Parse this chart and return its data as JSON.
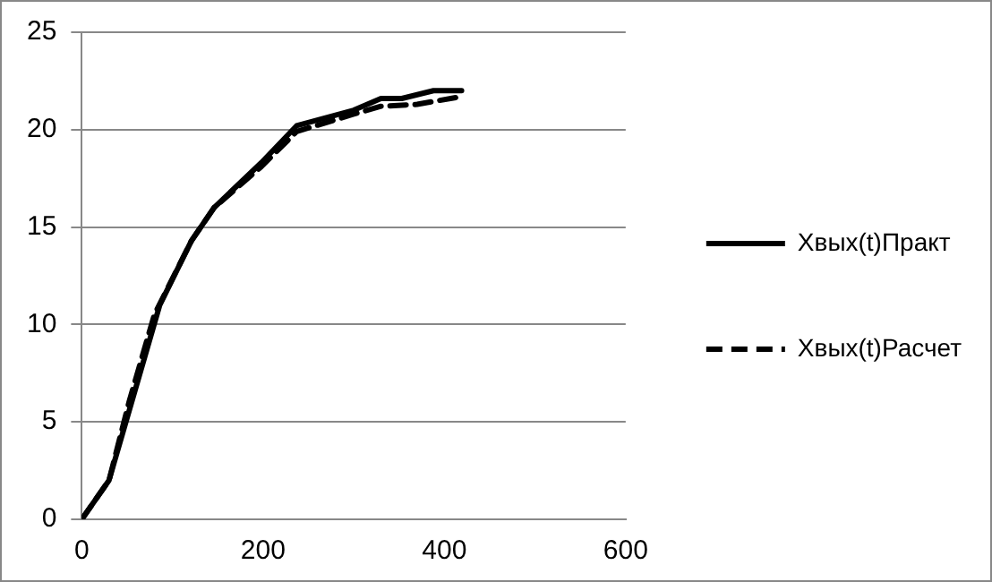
{
  "chart_data": {
    "type": "line",
    "xlim": [
      0,
      600
    ],
    "xticks": [
      0,
      200,
      400,
      600
    ],
    "ylim": [
      0,
      25
    ],
    "yticks": [
      0,
      5,
      10,
      15,
      20,
      25
    ],
    "grid": "y",
    "legend": "right",
    "marker": "none",
    "series": [
      {
        "name": "Xвых(t)Практ",
        "color": "#000000",
        "line_style": "solid",
        "x": [
          0,
          30,
          58,
          86,
          121,
          146,
          198,
          237,
          300,
          330,
          353,
          388,
          419
        ],
        "values": [
          0,
          2,
          6.5,
          11,
          14.3,
          16,
          18.3,
          20.2,
          21,
          21.6,
          21.6,
          22,
          22
        ]
      },
      {
        "name": "Xвых(t)Расчет",
        "color": "#000000",
        "line_style": "dashed",
        "x": [
          0,
          30,
          52,
          80,
          121,
          146,
          198,
          237,
          300,
          330,
          370,
          419
        ],
        "values": [
          0,
          2,
          6,
          10.5,
          14.3,
          16,
          18.1,
          19.9,
          20.8,
          21.2,
          21.3,
          21.7
        ]
      }
    ]
  }
}
